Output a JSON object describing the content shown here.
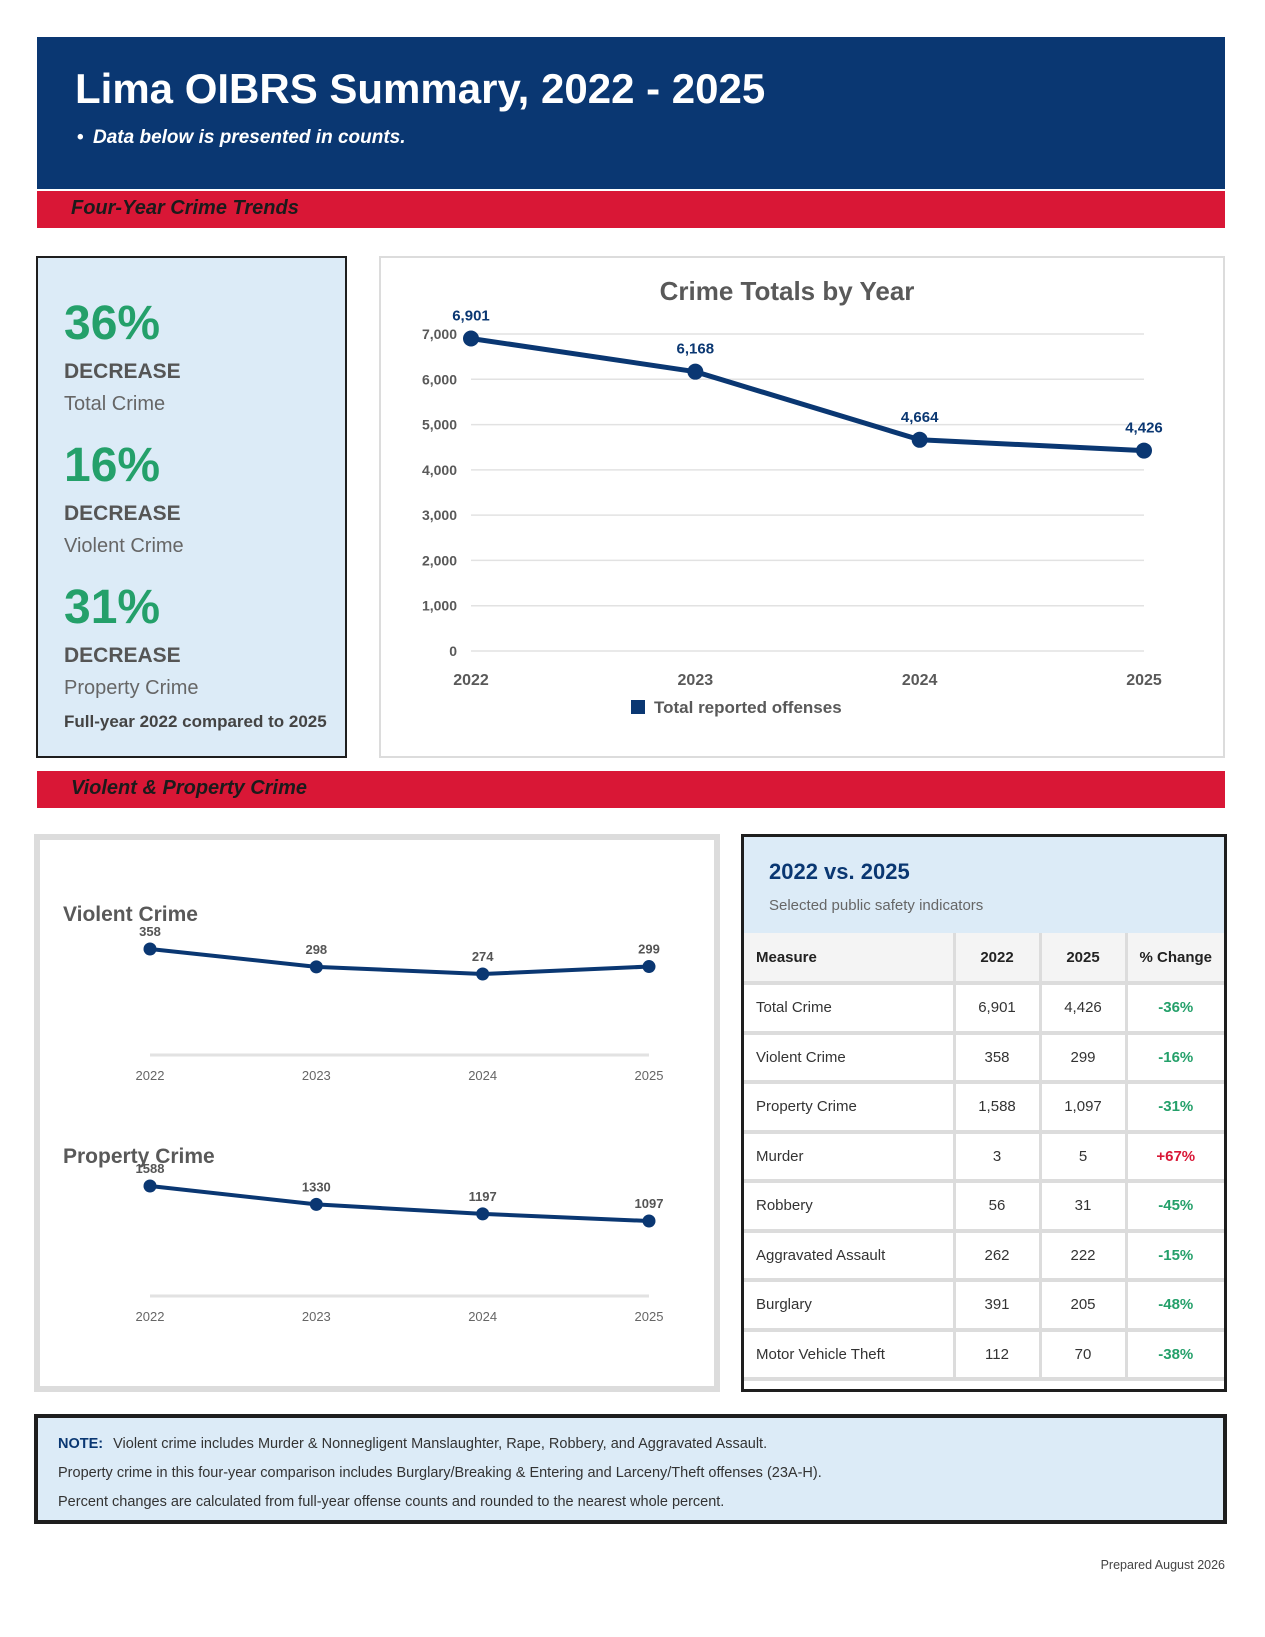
{
  "header": {
    "title": "Lima OIBRS Summary, 2022 - 2025",
    "subtitle": "Data below is presented in counts."
  },
  "sections": {
    "trends": "Four-Year Crime Trends",
    "violent_property": "Violent & Property Crime"
  },
  "kpis": [
    {
      "pct": "36%",
      "direction": "DECREASE",
      "label": "Total Crime"
    },
    {
      "pct": "16%",
      "direction": "DECREASE",
      "label": "Violent Crime"
    },
    {
      "pct": "31%",
      "direction": "DECREASE",
      "label": "Property Crime"
    }
  ],
  "kpi_footnote": "Full-year 2022 compared to 2025",
  "comparison": {
    "title": "2022 vs. 2025",
    "subtitle": "Selected public safety indicators",
    "columns": [
      "Measure",
      "2022",
      "2025",
      "% Change"
    ],
    "rows": [
      {
        "measure": "Total Crime",
        "v2022": "6,901",
        "v2025": "4,426",
        "change": "-36%"
      },
      {
        "measure": "Violent Crime",
        "v2022": "358",
        "v2025": "299",
        "change": "-16%"
      },
      {
        "measure": "Property Crime",
        "v2022": "1,588",
        "v2025": "1,097",
        "change": "-31%"
      },
      {
        "measure": "Murder",
        "v2022": "3",
        "v2025": "5",
        "change": "+67%"
      },
      {
        "measure": "Robbery",
        "v2022": "56",
        "v2025": "31",
        "change": "-45%"
      },
      {
        "measure": "Aggravated Assault",
        "v2022": "262",
        "v2025": "222",
        "change": "-15%"
      },
      {
        "measure": "Burglary",
        "v2022": "391",
        "v2025": "205",
        "change": "-48%"
      },
      {
        "measure": "Motor Vehicle Theft",
        "v2022": "112",
        "v2025": "70",
        "change": "-38%"
      }
    ]
  },
  "note": {
    "label": "NOTE:",
    "lines": [
      "Violent crime includes Murder & Nonnegligent Manslaughter, Rape, Robbery, and Aggravated Assault.",
      "Property crime in this four-year comparison includes Burglary/Breaking & Entering and Larceny/Theft offenses (23A-H).",
      "Percent changes are calculated from full-year offense counts and rounded to the nearest whole percent."
    ]
  },
  "prepared": "Prepared August 2026",
  "colors": {
    "navy": "#0a3772",
    "red": "#d91736",
    "green": "#24a06a",
    "light_blue": "#dcebf7"
  },
  "chart_data": [
    {
      "type": "line",
      "title": "Crime Totals by Year",
      "x": [
        "2022",
        "2023",
        "2024",
        "2025"
      ],
      "series": [
        {
          "name": "Total reported offenses",
          "values": [
            6901,
            6168,
            4664,
            4426
          ]
        }
      ],
      "data_labels": [
        "6,901",
        "6,168",
        "4,664",
        "4,426"
      ],
      "yticks": [
        "0",
        "1,000",
        "2,000",
        "3,000",
        "4,000",
        "5,000",
        "6,000",
        "7,000"
      ],
      "ylim": [
        0,
        7000
      ],
      "grid": true,
      "legend": "bottom"
    },
    {
      "type": "line",
      "title": "Violent Crime",
      "x": [
        "2022",
        "2023",
        "2024",
        "2025"
      ],
      "series": [
        {
          "values": [
            358,
            298,
            274,
            299
          ]
        }
      ],
      "data_labels": [
        "358",
        "298",
        "274",
        "299"
      ]
    },
    {
      "type": "line",
      "title": "Property Crime",
      "x": [
        "2022",
        "2023",
        "2024",
        "2025"
      ],
      "series": [
        {
          "values": [
            1588,
            1330,
            1197,
            1097
          ]
        }
      ],
      "data_labels": [
        "1588",
        "1330",
        "1197",
        "1097"
      ]
    }
  ]
}
